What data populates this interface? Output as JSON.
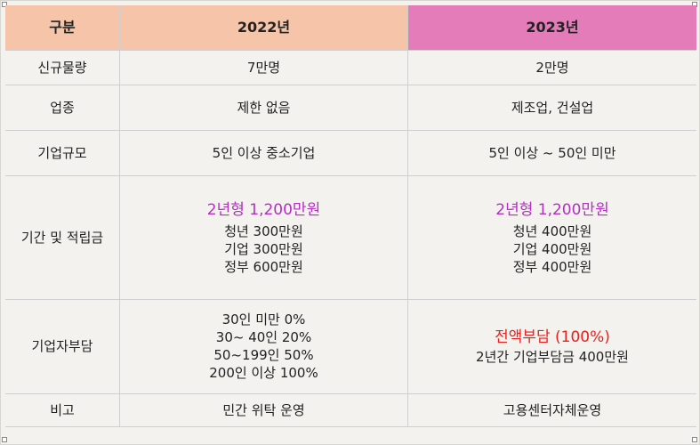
{
  "header": {
    "col0": "구분",
    "col1": "2022년",
    "col2": "2023년"
  },
  "rows": {
    "new_volume": {
      "label": "신규물량",
      "y2022": "7만명",
      "y2023": "2만명"
    },
    "industry": {
      "label": "업종",
      "y2022": "제한 없음",
      "y2023": "제조업, 건설업"
    },
    "company_size": {
      "label": "기업규모",
      "y2022": "5인 이상 중소기업",
      "y2023": "5인 이상 ~ 50인 미만"
    },
    "period_savings": {
      "label": "기간 및 적립금",
      "y2022": {
        "plan": "2년형 1,200만원",
        "lines": [
          "청년 300만원",
          "기업 300만원",
          "정부 600만원"
        ]
      },
      "y2023": {
        "plan": "2년형 1,200만원",
        "lines": [
          "청년 400만원",
          "기업 400만원",
          "정부 400만원"
        ]
      }
    },
    "company_burden": {
      "label": "기업자부담",
      "y2022": [
        "30인 미만 0%",
        "30~ 40인 20%",
        "50~199인 50%",
        "200인 이상 100%"
      ],
      "y2023": {
        "highlight": "전액부담 (100%)",
        "detail": "2년간 기업부담금 400만원"
      }
    },
    "remarks": {
      "label": "비고",
      "y2022": "민간 위탁 운영",
      "y2023": "고용센터자체운영"
    }
  },
  "colors": {
    "header_2022": "#f6c4a9",
    "header_2023": "#e37cb9",
    "plan_text": "#b42fc2",
    "burden_text": "#e8211f"
  }
}
